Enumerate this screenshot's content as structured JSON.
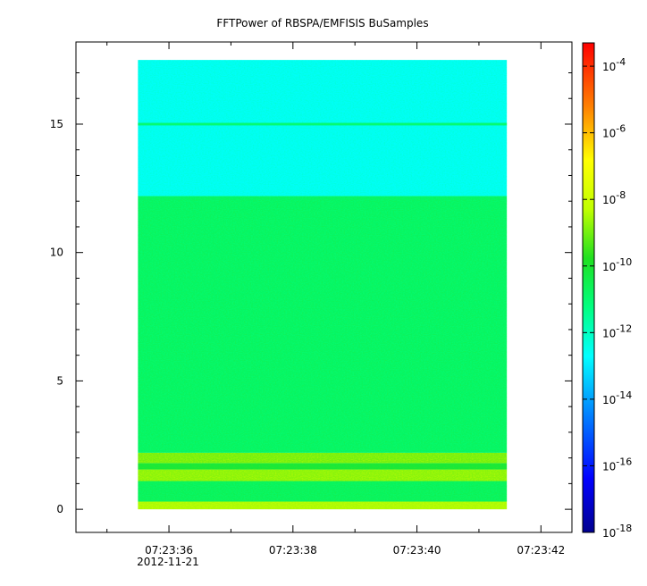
{
  "chart_data": {
    "type": "heatmap",
    "title": "FFTPower of RBSPA/EMFISIS  BuSamples",
    "xlabel": "",
    "ylabel": "",
    "x_ticks": [
      {
        "value": 36,
        "label": "07:23:36",
        "sublabel": "2012-11-21"
      },
      {
        "value": 38,
        "label": "07:23:38",
        "sublabel": ""
      },
      {
        "value": 40,
        "label": "07:23:40",
        "sublabel": ""
      },
      {
        "value": 42,
        "label": "07:23:42",
        "sublabel": ""
      }
    ],
    "x_minor_ticks": [
      35,
      37,
      39,
      41
    ],
    "xlim": [
      34.5,
      42.5
    ],
    "data_x_range": [
      35.5,
      41.45
    ],
    "y_ticks": [
      {
        "value": 0,
        "label": "0"
      },
      {
        "value": 5,
        "label": "5"
      },
      {
        "value": 10,
        "label": "10"
      },
      {
        "value": 15,
        "label": "15"
      }
    ],
    "ylim": [
      -0.9,
      18.2
    ],
    "data_y_range": [
      0,
      17.5
    ],
    "colorbar": {
      "scale": "log",
      "min_exp": -18,
      "max_exp": -3.3,
      "tick_exponents": [
        -4,
        -6,
        -8,
        -10,
        -12,
        -14,
        -16,
        -18
      ],
      "tick_base": "10"
    },
    "bands": [
      {
        "y_from": 0,
        "y_to": 0.3,
        "level_exp": -8.5,
        "note": "bright"
      },
      {
        "y_from": 0.3,
        "y_to": 1.1,
        "level_exp": -10.8
      },
      {
        "y_from": 1.1,
        "y_to": 1.55,
        "level_exp": -8.8,
        "note": "bright"
      },
      {
        "y_from": 1.55,
        "y_to": 1.8,
        "level_exp": -10.2
      },
      {
        "y_from": 1.8,
        "y_to": 2.2,
        "level_exp": -9.0,
        "note": "bright"
      },
      {
        "y_from": 2.2,
        "y_to": 12.2,
        "level_exp": -10.9
      },
      {
        "y_from": 12.2,
        "y_to": 17.5,
        "level_exp": -12.6
      },
      {
        "y_from": 14.95,
        "y_to": 15.05,
        "level_exp": -11.0,
        "note": "line"
      }
    ]
  }
}
